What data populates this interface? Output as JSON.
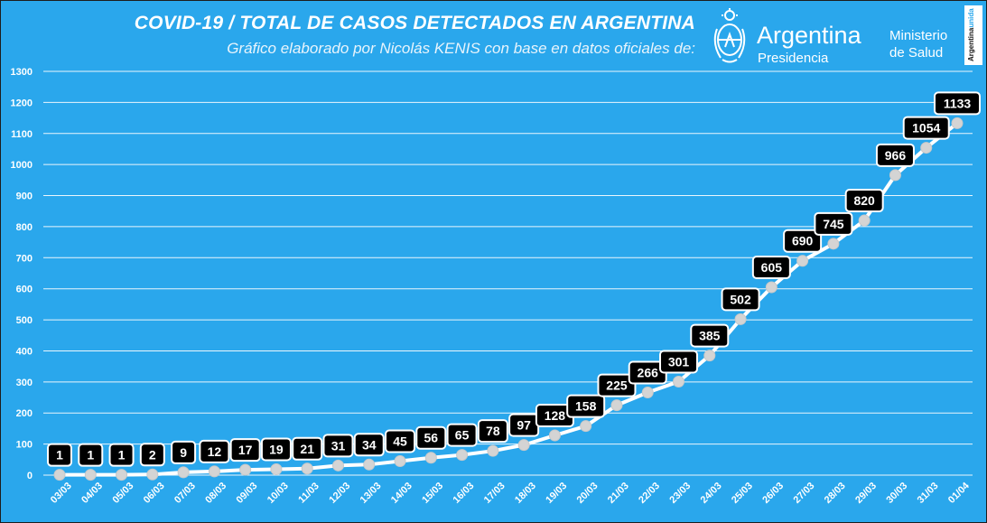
{
  "header": {
    "title": "COVID-19  /  TOTAL DE CASOS DETECTADOS EN ARGENTINA",
    "subtitle": "Gráfico elaborado por Nicolás KENIS con base en datos oficiales de:"
  },
  "logos": {
    "argentina": "Argentina",
    "presidencia": "Presidencia",
    "ministerio_line1": "Ministerio",
    "ministerio_line2": "de Salud",
    "argentina_unida_a": "Argentina",
    "argentina_unida_b": "unida"
  },
  "colors": {
    "background": "#2aa7ec",
    "line": "#ffffff",
    "marker": "#d4d4d4",
    "label_box": "#000000"
  },
  "chart_data": {
    "type": "line",
    "title": "COVID-19  /  TOTAL DE CASOS DETECTADOS EN ARGENTINA",
    "xlabel": "",
    "ylabel": "",
    "ylim": [
      0,
      1300
    ],
    "yticks": [
      0,
      100,
      200,
      300,
      400,
      500,
      600,
      700,
      800,
      900,
      1000,
      1100,
      1200,
      1300
    ],
    "grid": true,
    "legend": "none",
    "categories": [
      "03/03",
      "04/03",
      "05/03",
      "06/03",
      "07/03",
      "08/03",
      "09/03",
      "10/03",
      "11/03",
      "12/03",
      "13/03",
      "14/03",
      "15/03",
      "16/03",
      "17/03",
      "18/03",
      "19/03",
      "20/03",
      "21/03",
      "22/03",
      "23/03",
      "24/03",
      "25/03",
      "26/03",
      "27/03",
      "28/03",
      "29/03",
      "30/03",
      "31/03",
      "01/04"
    ],
    "values": [
      1,
      1,
      1,
      2,
      9,
      12,
      17,
      19,
      21,
      31,
      34,
      45,
      56,
      65,
      78,
      97,
      128,
      158,
      225,
      266,
      301,
      385,
      502,
      605,
      690,
      745,
      820,
      966,
      1054,
      1133
    ]
  }
}
